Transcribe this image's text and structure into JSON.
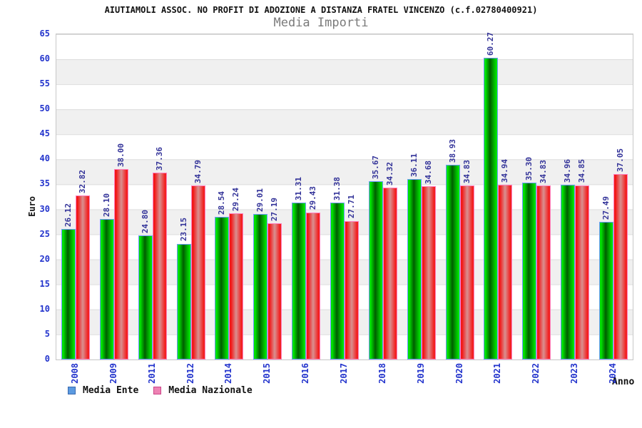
{
  "title": "AIUTIAMOLI ASSOC. NO PROFIT DI ADOZIONE A DISTANZA FRATEL VINCENZO (c.f.02780400921)",
  "subtitle": "Media Importi",
  "chart_data": {
    "type": "bar",
    "title": "AIUTIAMOLI ASSOC. NO PROFIT DI ADOZIONE A DISTANZA FRATEL VINCENZO (c.f.02780400921)",
    "subtitle": "Media Importi",
    "xlabel": "Anno",
    "ylabel": "Euro",
    "ylim": [
      0,
      65
    ],
    "ytick_step": 5,
    "grid": "horizontal-bands-alternating",
    "legend_position": "bottom-left",
    "categories": [
      "2008",
      "2009",
      "2011",
      "2012",
      "2014",
      "2015",
      "2016",
      "2017",
      "2018",
      "2019",
      "2020",
      "2021",
      "2022",
      "2023",
      "2024"
    ],
    "series": [
      {
        "name": "Media Ente",
        "bar_color": "#00cc00",
        "bar_outline": "#6e9bff",
        "values": [
          26.12,
          28.1,
          24.8,
          23.15,
          28.54,
          29.01,
          31.31,
          31.38,
          35.67,
          36.11,
          38.93,
          60.27,
          35.3,
          34.96,
          27.49
        ]
      },
      {
        "name": "Media Nazionale",
        "bar_color": "#ee2222",
        "bar_outline": "#ff7fbe",
        "values": [
          32.82,
          38.0,
          37.36,
          34.79,
          29.24,
          27.19,
          29.43,
          27.71,
          34.32,
          34.68,
          34.83,
          34.94,
          34.83,
          34.85,
          37.05
        ]
      }
    ],
    "value_label_color": "#333399",
    "axis_label_color": "#2233cc",
    "band_colors": [
      "#ffffff",
      "#f0f0f0"
    ]
  },
  "legend": {
    "items": [
      {
        "label": "Media Ente",
        "swatch_color": "#5b9ae0"
      },
      {
        "label": "Media Nazionale",
        "swatch_color": "#ee82b4"
      }
    ]
  }
}
